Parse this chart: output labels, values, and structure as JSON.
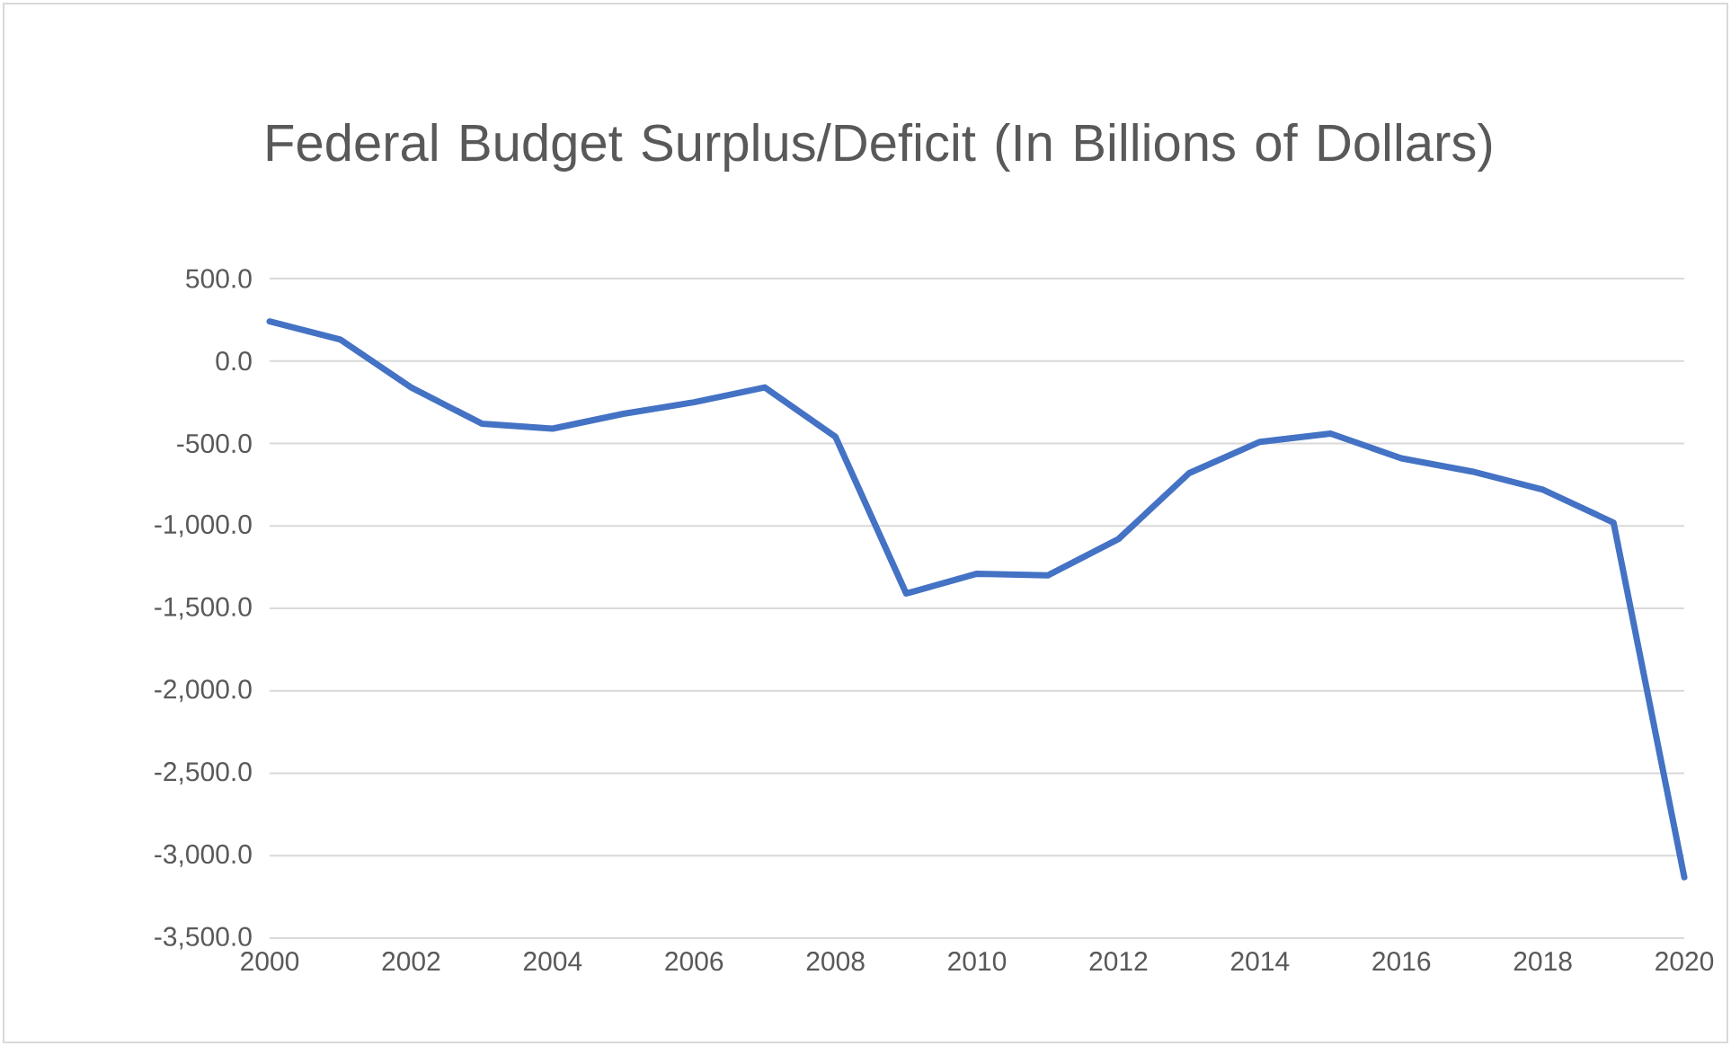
{
  "chart_data": {
    "type": "line",
    "title": "Federal Budget Surplus/Deficit (In Billions of Dollars)",
    "x": [
      2000,
      2001,
      2002,
      2003,
      2004,
      2005,
      2006,
      2007,
      2008,
      2009,
      2010,
      2011,
      2012,
      2013,
      2014,
      2015,
      2016,
      2017,
      2018,
      2019,
      2020
    ],
    "series": [
      {
        "color": "#4472c4",
        "values": [
          240,
          130,
          -160,
          -380,
          -410,
          -320,
          -250,
          -160,
          -460,
          -1410,
          -1290,
          -1300,
          -1080,
          -680,
          -490,
          -440,
          -590,
          -670,
          -780,
          -980,
          -3130
        ]
      }
    ],
    "xlim": [
      2000,
      2020
    ],
    "xticks": [
      2000,
      2002,
      2004,
      2006,
      2008,
      2010,
      2012,
      2014,
      2016,
      2018,
      2020
    ],
    "ylim": [
      -3500,
      500
    ],
    "yticks": [
      {
        "value": 500,
        "label": "500.0"
      },
      {
        "value": 0,
        "label": "0.0"
      },
      {
        "value": -500,
        "label": "-500.0"
      },
      {
        "value": -1000,
        "label": "-1,000.0"
      },
      {
        "value": -1500,
        "label": "-1,500.0"
      },
      {
        "value": -2000,
        "label": "-2,000.0"
      },
      {
        "value": -2500,
        "label": "-2,500.0"
      },
      {
        "value": -3000,
        "label": "-3,000.0"
      },
      {
        "value": -3500,
        "label": "-3,500.0"
      }
    ],
    "grid": "y",
    "legend": false,
    "marker": "none",
    "line_style": "solid"
  }
}
